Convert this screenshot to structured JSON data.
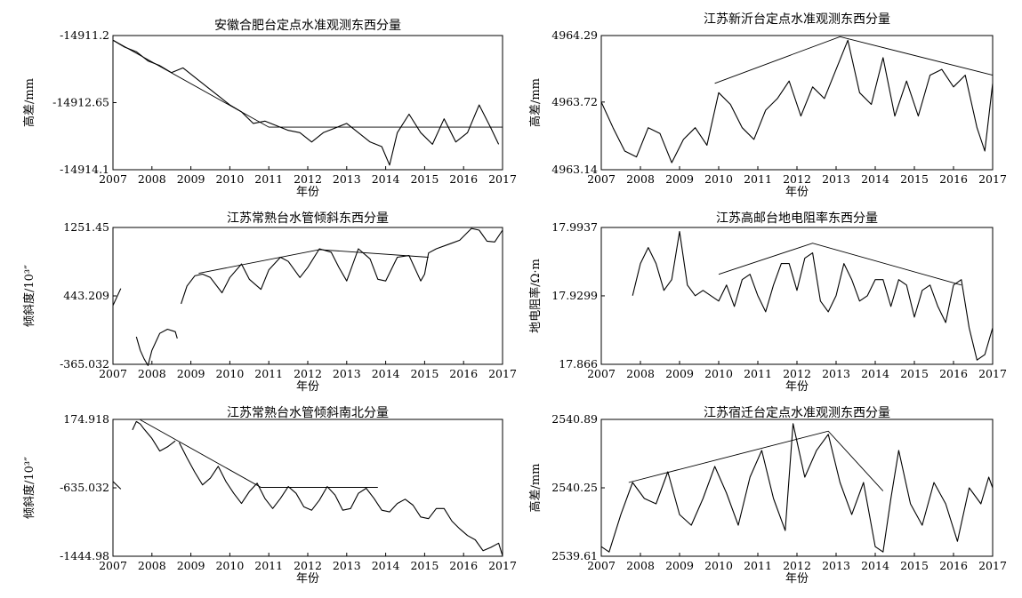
{
  "chart_data": [
    {
      "type": "line",
      "title": "安徽合肥台定点水准观测东西分量",
      "ylabel": "高差/mm",
      "xlabel": "年份",
      "xlim": [
        2007,
        2017
      ],
      "ylim": [
        -14914.1,
        -14911.2
      ],
      "xticks": [
        "2007",
        "2008",
        "2009",
        "2010",
        "2011",
        "2012",
        "2013",
        "2014",
        "2015",
        "2016",
        "2017"
      ],
      "yticks": [
        "-14911.2",
        "-14912.65",
        "-14914.1"
      ],
      "series": [
        {
          "x": [
            2007.0,
            2007.3,
            2007.6,
            2007.9,
            2008.2,
            2008.5,
            2008.8,
            2009.1,
            2009.4,
            2009.7,
            2010.0,
            2010.3,
            2010.6,
            2010.9,
            2011.2,
            2011.5,
            2011.8,
            2012.1,
            2012.4,
            2012.7,
            2013.0,
            2013.3,
            2013.6,
            2013.9,
            2014.1,
            2014.3,
            2014.6,
            2014.9,
            2015.2,
            2015.5,
            2015.8,
            2016.1,
            2016.4,
            2016.7,
            2016.9
          ],
          "y": [
            -14911.3,
            -14911.45,
            -14911.55,
            -14911.75,
            -14911.85,
            -14912.0,
            -14911.9,
            -14912.1,
            -14912.3,
            -14912.5,
            -14912.7,
            -14912.85,
            -14913.1,
            -14913.05,
            -14913.15,
            -14913.25,
            -14913.3,
            -14913.5,
            -14913.3,
            -14913.2,
            -14913.1,
            -14913.3,
            -14913.5,
            -14913.6,
            -14914.0,
            -14913.3,
            -14912.9,
            -14913.3,
            -14913.55,
            -14913.0,
            -14913.5,
            -14913.3,
            -14912.7,
            -14913.2,
            -14913.55
          ]
        }
      ],
      "trend": {
        "x": [
          2007.0,
          2011.0,
          2017.0
        ],
        "y": [
          -14911.3,
          -14913.18,
          -14913.18
        ]
      }
    },
    {
      "type": "line",
      "title": "江苏新沂台定点水准观测东西分量",
      "ylabel": "高差/mm",
      "xlabel": "年份",
      "xlim": [
        2007,
        2017
      ],
      "ylim": [
        4963.14,
        4964.29
      ],
      "xticks": [
        "2007",
        "2008",
        "2009",
        "2010",
        "2011",
        "2012",
        "2013",
        "2014",
        "2015",
        "2016",
        "2017"
      ],
      "yticks": [
        "4964.29",
        "4963.72",
        "4963.14"
      ],
      "series": [
        {
          "x": [
            2007.0,
            2007.3,
            2007.6,
            2007.9,
            2008.2,
            2008.5,
            2008.8,
            2009.1,
            2009.4,
            2009.7,
            2010.0,
            2010.3,
            2010.6,
            2010.9,
            2011.2,
            2011.5,
            2011.8,
            2012.1,
            2012.4,
            2012.7,
            2013.0,
            2013.3,
            2013.6,
            2013.9,
            2014.2,
            2014.5,
            2014.8,
            2015.1,
            2015.4,
            2015.7,
            2016.0,
            2016.3,
            2016.6,
            2016.8,
            2017.0
          ],
          "y": [
            4963.72,
            4963.5,
            4963.3,
            4963.25,
            4963.5,
            4963.45,
            4963.2,
            4963.4,
            4963.5,
            4963.35,
            4963.8,
            4963.7,
            4963.5,
            4963.4,
            4963.65,
            4963.75,
            4963.9,
            4963.6,
            4963.85,
            4963.75,
            4964.0,
            4964.25,
            4963.8,
            4963.7,
            4964.1,
            4963.6,
            4963.9,
            4963.6,
            4963.95,
            4964.0,
            4963.85,
            4963.95,
            4963.5,
            4963.3,
            4963.88
          ]
        }
      ],
      "trend": {
        "x": [
          2009.9,
          2013.1,
          2017.0
        ],
        "y": [
          4963.88,
          4964.28,
          4963.95
        ]
      }
    },
    {
      "type": "line",
      "title": "江苏常熟台水管倾斜东西分量",
      "ylabel": "倾斜度/10³″",
      "xlabel": "年份",
      "xlim": [
        2007,
        2017
      ],
      "ylim": [
        -365.032,
        1251.45
      ],
      "xticks": [
        "2007",
        "2008",
        "2009",
        "2010",
        "2011",
        "2012",
        "2013",
        "2014",
        "2015",
        "2016",
        "2017"
      ],
      "yticks": [
        "1251.45",
        "443.209",
        "-365.032"
      ],
      "series": [
        {
          "x": [
            2007.0,
            2007.2
          ],
          "y": [
            330,
            530
          ]
        },
        {
          "x": [
            2007.6,
            2007.7,
            2007.8,
            2007.9,
            2008.0,
            2008.2,
            2008.4,
            2008.6,
            2008.65
          ],
          "y": [
            -40,
            -200,
            -300,
            -380,
            -200,
            0,
            50,
            20,
            -60
          ]
        },
        {
          "x": [
            2008.75,
            2008.9,
            2009.1,
            2009.3,
            2009.5,
            2009.8,
            2010.0,
            2010.3,
            2010.5,
            2010.8,
            2011.0,
            2011.3,
            2011.5,
            2011.8,
            2012.0,
            2012.3,
            2012.6,
            2012.8,
            2013.0,
            2013.3,
            2013.6,
            2013.8,
            2014.0,
            2014.3,
            2014.6,
            2014.9,
            2015.0,
            2015.1,
            2015.3,
            2015.6,
            2015.9,
            2016.2,
            2016.4,
            2016.6,
            2016.8,
            2017.0
          ],
          "y": [
            350,
            560,
            680,
            700,
            660,
            480,
            660,
            820,
            640,
            520,
            750,
            900,
            850,
            660,
            780,
            1000,
            960,
            780,
            620,
            1000,
            880,
            640,
            620,
            900,
            920,
            620,
            700,
            950,
            1000,
            1050,
            1100,
            1240,
            1220,
            1090,
            1080,
            1220
          ]
        }
      ],
      "trend": {
        "x": [
          2009.2,
          2012.3,
          2015.1
        ],
        "y": [
          710,
          990,
          900
        ]
      }
    },
    {
      "type": "line",
      "title": "江苏高邮台地电阻率东西分量",
      "ylabel": "地电阻率/Ω·m",
      "xlabel": "年份",
      "xlim": [
        2007,
        2017
      ],
      "ylim": [
        17.866,
        17.9937
      ],
      "xticks": [
        "2007",
        "2008",
        "2009",
        "2010",
        "2011",
        "2012",
        "2013",
        "2014",
        "2015",
        "2016",
        "2017"
      ],
      "yticks": [
        "17.9937",
        "17.9299",
        "17.866"
      ],
      "series": [
        {
          "x": [
            2007.8,
            2008.0,
            2008.2,
            2008.4,
            2008.6,
            2008.8,
            2009.0,
            2009.2,
            2009.4,
            2009.6,
            2009.8,
            2010.0,
            2010.2,
            2010.4,
            2010.6,
            2010.8,
            2011.0,
            2011.2,
            2011.4,
            2011.6,
            2011.8,
            2012.0,
            2012.2,
            2012.4,
            2012.6,
            2012.8,
            2013.0,
            2013.2,
            2013.4,
            2013.6,
            2013.8,
            2014.0,
            2014.2,
            2014.4,
            2014.6,
            2014.8,
            2015.0,
            2015.2,
            2015.4,
            2015.6,
            2015.8,
            2016.0,
            2016.2,
            2016.4,
            2016.6,
            2016.8,
            2017.0
          ],
          "y": [
            17.93,
            17.96,
            17.975,
            17.96,
            17.935,
            17.945,
            17.99,
            17.94,
            17.93,
            17.935,
            17.93,
            17.925,
            17.94,
            17.92,
            17.945,
            17.95,
            17.93,
            17.915,
            17.94,
            17.96,
            17.96,
            17.935,
            17.965,
            17.97,
            17.925,
            17.915,
            17.93,
            17.96,
            17.945,
            17.925,
            17.93,
            17.945,
            17.945,
            17.92,
            17.945,
            17.94,
            17.91,
            17.935,
            17.94,
            17.92,
            17.905,
            17.94,
            17.945,
            17.9,
            17.87,
            17.875,
            17.9
          ]
        }
      ],
      "trend": {
        "x": [
          2010.0,
          2012.4,
          2016.2
        ],
        "y": [
          17.95,
          17.979,
          17.94
        ]
      }
    },
    {
      "type": "line",
      "title": "江苏常熟台水管倾斜南北分量",
      "ylabel": "倾斜度/10³″",
      "xlabel": "年份",
      "xlim": [
        2007,
        2017
      ],
      "ylim": [
        -1444.98,
        174.918
      ],
      "xticks": [
        "2007",
        "2008",
        "2009",
        "2010",
        "2011",
        "2012",
        "2013",
        "2014",
        "2015",
        "2016",
        "2017"
      ],
      "yticks": [
        "174.918",
        "-635.032",
        "-1444.98"
      ],
      "series": [
        {
          "x": [
            2007.0,
            2007.2
          ],
          "y": [
            -560,
            -650
          ]
        },
        {
          "x": [
            2007.5,
            2007.6,
            2007.7,
            2007.8,
            2008.0,
            2008.2,
            2008.4,
            2008.6
          ],
          "y": [
            50,
            150,
            120,
            60,
            -50,
            -200,
            -150,
            -80
          ]
        },
        {
          "x": [
            2008.7,
            2008.9,
            2009.1,
            2009.3,
            2009.5,
            2009.7,
            2009.9,
            2010.1,
            2010.3,
            2010.5,
            2010.7,
            2010.9,
            2011.1,
            2011.3,
            2011.5,
            2011.7,
            2011.9,
            2012.1,
            2012.3,
            2012.5,
            2012.7,
            2012.9,
            2013.1,
            2013.3,
            2013.5,
            2013.7,
            2013.9,
            2014.1,
            2014.3,
            2014.5,
            2014.7,
            2014.9,
            2015.1,
            2015.3,
            2015.5,
            2015.7,
            2015.9,
            2016.1,
            2016.3,
            2016.5,
            2016.7,
            2016.9,
            2017.0
          ],
          "y": [
            -100,
            -280,
            -450,
            -600,
            -520,
            -380,
            -560,
            -700,
            -820,
            -680,
            -580,
            -760,
            -880,
            -760,
            -620,
            -700,
            -860,
            -900,
            -780,
            -620,
            -720,
            -900,
            -880,
            -700,
            -640,
            -760,
            -900,
            -920,
            -820,
            -770,
            -840,
            -980,
            -1000,
            -880,
            -880,
            -1030,
            -1120,
            -1200,
            -1250,
            -1380,
            -1340,
            -1290,
            -1440
          ]
        }
      ],
      "trend": {
        "x": [
          2007.7,
          2010.8,
          2013.8
        ],
        "y": [
          170,
          -630,
          -630
        ]
      }
    },
    {
      "type": "line",
      "title": "江苏宿迁台定点水准观测东西分量",
      "ylabel": "高差/mm",
      "xlabel": "年份",
      "xlim": [
        2007,
        2017
      ],
      "ylim": [
        2539.61,
        2540.89
      ],
      "xticks": [
        "2007",
        "2008",
        "2009",
        "2010",
        "2011",
        "2012",
        "2013",
        "2014",
        "2015",
        "2016",
        "2017"
      ],
      "yticks": [
        "2540.89",
        "2540.25",
        "2539.61"
      ],
      "series": [
        {
          "x": [
            2007.0,
            2007.2,
            2007.5,
            2007.8,
            2008.1,
            2008.4,
            2008.7,
            2009.0,
            2009.3,
            2009.6,
            2009.9,
            2010.2,
            2010.5,
            2010.8,
            2011.1,
            2011.4,
            2011.7,
            2011.9,
            2012.2,
            2012.5,
            2012.8,
            2013.1,
            2013.4,
            2013.7,
            2014.0,
            2014.2,
            2014.4,
            2014.6,
            2014.9,
            2015.2,
            2015.5,
            2015.8,
            2016.1,
            2016.4,
            2016.7,
            2016.9,
            2017.0
          ],
          "y": [
            2539.7,
            2539.65,
            2540.0,
            2540.3,
            2540.15,
            2540.1,
            2540.4,
            2540.0,
            2539.9,
            2540.15,
            2540.45,
            2540.2,
            2539.9,
            2540.35,
            2540.6,
            2540.15,
            2539.85,
            2540.85,
            2540.35,
            2540.6,
            2540.75,
            2540.3,
            2540.0,
            2540.3,
            2539.7,
            2539.65,
            2540.15,
            2540.6,
            2540.1,
            2539.9,
            2540.3,
            2540.1,
            2539.75,
            2540.25,
            2540.1,
            2540.35,
            2540.25
          ]
        }
      ],
      "trend": {
        "x": [
          2007.7,
          2012.8,
          2014.2
        ],
        "y": [
          2540.3,
          2540.78,
          2540.22
        ]
      }
    }
  ]
}
